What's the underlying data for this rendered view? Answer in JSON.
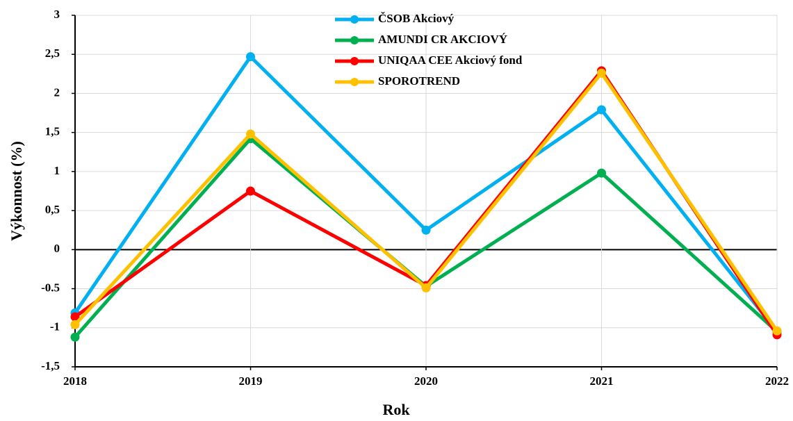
{
  "chart_data": {
    "type": "line",
    "x_label": "Rok",
    "y_label": "Výkonnost (%)",
    "x": [
      2018,
      2019,
      2020,
      2021,
      2022
    ],
    "xlim": [
      2018,
      2022
    ],
    "xticks": [
      2018,
      2019,
      2020,
      2021,
      2022
    ],
    "ylim": [
      -1.5,
      3
    ],
    "yticks": [
      {
        "value": -1.5,
        "label": "-1,5"
      },
      -1,
      -0.5,
      0,
      {
        "value": 0.5,
        "label": "0,5"
      },
      1,
      {
        "value": 1.5,
        "label": "1,5"
      },
      2,
      {
        "value": 2.5,
        "label": "2,5"
      },
      3
    ],
    "grid": true,
    "series": [
      {
        "name": "ČSOB Akciový",
        "color": "#00b0f0",
        "values": [
          -0.81,
          2.47,
          0.25,
          1.79,
          -1.05
        ]
      },
      {
        "name": "AMUNDI CR AKCIOVÝ",
        "color": "#00b050",
        "values": [
          -1.12,
          1.42,
          -0.47,
          0.98,
          -1.05
        ]
      },
      {
        "name": "UNIQAA CEE Akciový fond",
        "color": "#ff0000",
        "values": [
          -0.86,
          0.75,
          -0.46,
          2.29,
          -1.09
        ]
      },
      {
        "name": "SPOROTREND",
        "color": "#ffc000",
        "values": [
          -0.96,
          1.48,
          -0.49,
          2.26,
          -1.04
        ]
      }
    ]
  }
}
